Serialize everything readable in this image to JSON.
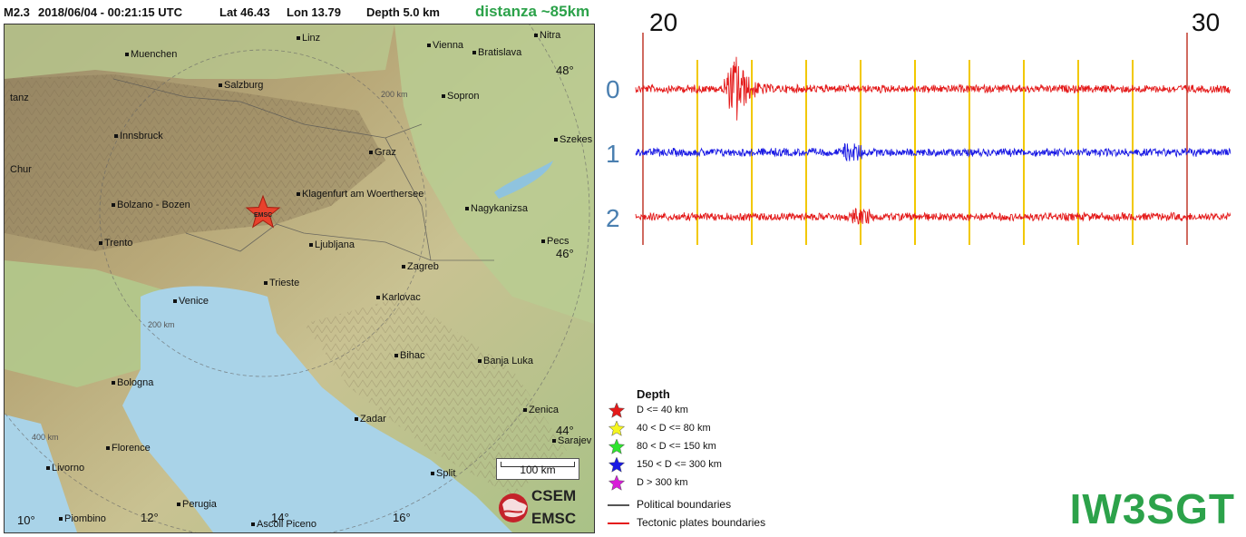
{
  "header": {
    "magnitude": "M2.3",
    "datetime": "2018/06/04 - 00:21:15 UTC",
    "lat": "Lat 46.43",
    "lon": "Lon  13.79",
    "depth": "Depth    5.0 km",
    "distance": "distanza ~85km"
  },
  "map": {
    "cities": [
      "Linz",
      "Vienna",
      "Bratislava",
      "Nitra",
      "Muenchen",
      "Salzburg",
      "Sopron",
      "Innsbruck",
      "Graz",
      "Szekes",
      "Chur",
      "Klagenfurt am Woerthersee",
      "Nagykanizsa",
      "Bolzano - Bozen",
      "Trento",
      "Ljubljana",
      "Pecs",
      "Zagreb",
      "Trieste",
      "Venice",
      "Karlovac",
      "Bihac",
      "Banja Luka",
      "Bologna",
      "Zadar",
      "Zenica",
      "Sarajev",
      "Florence",
      "Livorno",
      "Split",
      "Perugia",
      "Piombino",
      "Ascoli Piceno",
      "tanz"
    ],
    "grid_lat": [
      "48°",
      "46°",
      "44°"
    ],
    "grid_lon": [
      "10°",
      "12°",
      "14°",
      "16°"
    ],
    "distance_rings": [
      "200 km",
      "200 km",
      "400 km"
    ],
    "epicenter_label": "EMSC",
    "epicenter_color": "#e8412c",
    "scale_label": "100 km",
    "logo_top": "CSEM",
    "logo_bottom": "EMSC"
  },
  "legend": {
    "title": "Depth",
    "depth_classes": [
      {
        "label": "D <= 40 km",
        "color": "#e41a1a"
      },
      {
        "label": "40 < D <= 80 km",
        "color": "#f5f51e"
      },
      {
        "label": "80 < D <= 150 km",
        "color": "#2de42d"
      },
      {
        "label": "150 < D <= 300 km",
        "color": "#1a1ae4"
      },
      {
        "label": "D > 300 km",
        "color": "#d81ed8"
      }
    ],
    "boundaries": [
      {
        "label": "Political boundaries",
        "color": "#555555"
      },
      {
        "label": "Tectonic plates boundaries",
        "color": "#e41a1a"
      }
    ]
  },
  "seismogram": {
    "time_start": "20",
    "time_end": "30",
    "channels": [
      {
        "label": "0",
        "color": "#e41a1a"
      },
      {
        "label": "1",
        "color": "#1a1ae4"
      },
      {
        "label": "2",
        "color": "#e41a1a"
      }
    ],
    "marker_color": "#f2c800",
    "bound_color": "#c0392b",
    "label_color": "#4a7fb0"
  },
  "station": "IW3SGT"
}
